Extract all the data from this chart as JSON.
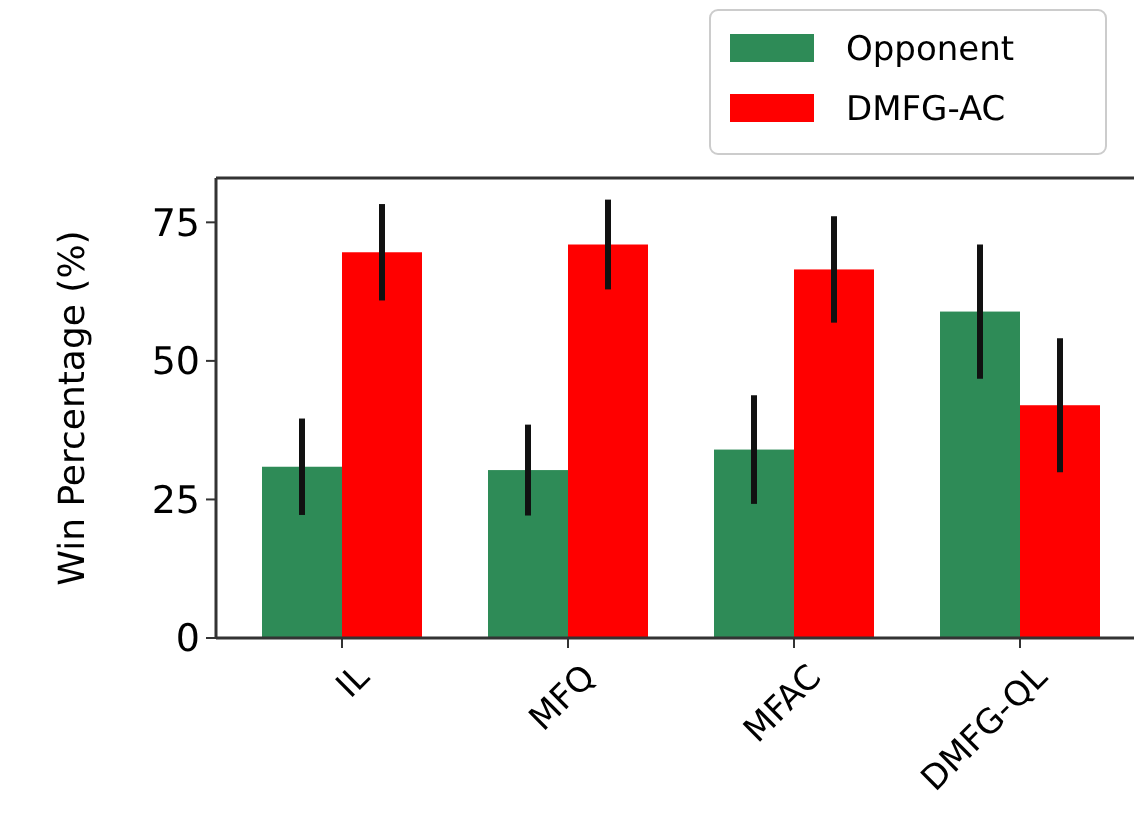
{
  "chart_data": {
    "type": "bar",
    "ylabel": "Win Percentage (%)",
    "categories": [
      "IL",
      "MFQ",
      "MFAC",
      "DMFG-QL"
    ],
    "series": [
      {
        "name": "Opponent",
        "color": "#2e8b57",
        "values": [
          30.9,
          30.3,
          34.0,
          58.9
        ],
        "errors": [
          8.7,
          8.2,
          9.8,
          12.1
        ]
      },
      {
        "name": "DMFG-AC",
        "color": "#ff0000",
        "values": [
          69.6,
          71.0,
          66.5,
          42.0
        ],
        "errors": [
          8.7,
          8.1,
          9.6,
          12.1
        ]
      }
    ],
    "ylim": [
      0,
      83
    ],
    "yticks": [
      0,
      25,
      50,
      75
    ],
    "legend": "top right",
    "grid": false
  }
}
